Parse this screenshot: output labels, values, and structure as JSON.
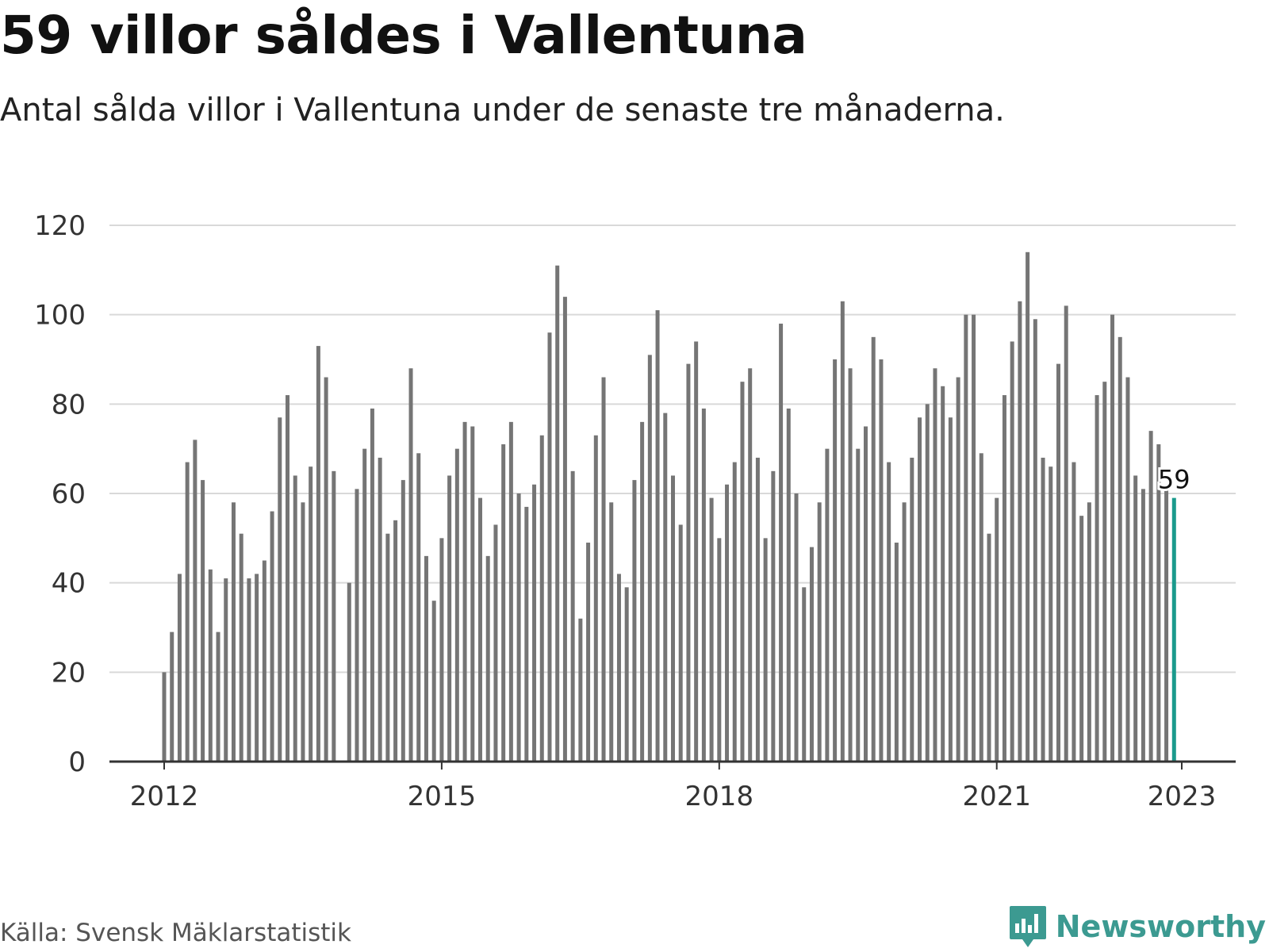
{
  "title": "59 villor såldes i Vallentuna",
  "subtitle": "Antal sålda villor i Vallentuna under de senaste tre månaderna.",
  "source": "Källa: Svensk Mäklarstatistik",
  "brand": {
    "name": "Newsworthy",
    "logo_icon": "newsworthy-logo-icon"
  },
  "colors": {
    "bar": "#757575",
    "highlight": "#1a9a8c",
    "grid": "#d9d9d9",
    "axis": "#333333",
    "brand": "#3c9a91"
  },
  "chart_data": {
    "type": "bar",
    "x_start": "2012-01",
    "interval": "month",
    "y_ticks": [
      0,
      20,
      40,
      60,
      80,
      100,
      120
    ],
    "x_ticks": [
      "2012",
      "2015",
      "2018",
      "2021",
      "2023"
    ],
    "ylim": [
      0,
      120
    ],
    "grid": true,
    "highlight_label": "59",
    "values": [
      20,
      29,
      42,
      67,
      72,
      63,
      43,
      29,
      41,
      58,
      51,
      41,
      42,
      45,
      56,
      77,
      82,
      64,
      58,
      66,
      93,
      86,
      65,
      0,
      40,
      61,
      70,
      79,
      68,
      51,
      54,
      63,
      88,
      69,
      46,
      36,
      50,
      64,
      70,
      76,
      75,
      59,
      46,
      53,
      71,
      76,
      60,
      57,
      62,
      73,
      96,
      111,
      104,
      65,
      32,
      49,
      73,
      86,
      58,
      42,
      39,
      63,
      76,
      91,
      101,
      78,
      64,
      53,
      89,
      94,
      79,
      59,
      50,
      62,
      67,
      85,
      88,
      68,
      50,
      65,
      98,
      79,
      60,
      39,
      48,
      58,
      70,
      90,
      103,
      88,
      70,
      75,
      95,
      90,
      67,
      49,
      58,
      68,
      77,
      80,
      88,
      84,
      77,
      86,
      100,
      100,
      69,
      51,
      59,
      82,
      94,
      103,
      114,
      99,
      68,
      66,
      89,
      102,
      67,
      55,
      58,
      82,
      85,
      100,
      95,
      86,
      64,
      61,
      74,
      71,
      62,
      59
    ]
  }
}
